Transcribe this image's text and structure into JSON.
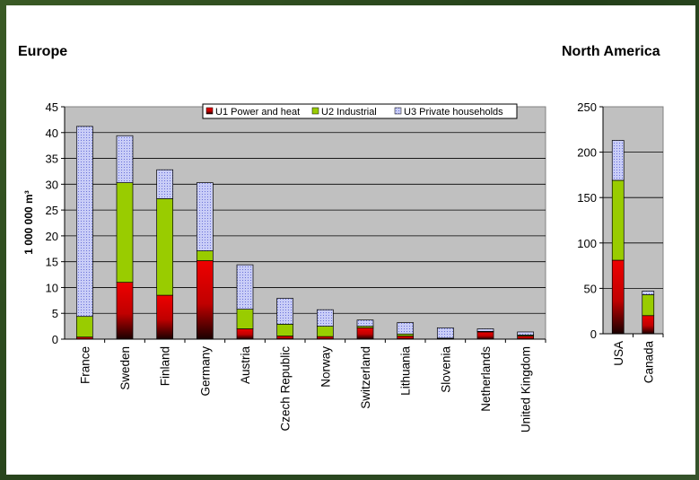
{
  "chart_data": [
    {
      "type": "bar",
      "stacked": true,
      "title": "Europe",
      "ylabel": "1 000 000 m³",
      "ylim": [
        0,
        45
      ],
      "yticks": [
        0,
        5,
        10,
        15,
        20,
        25,
        30,
        35,
        40,
        45
      ],
      "grid": true,
      "legend_position": "top-right",
      "categories": [
        "France",
        "Sweden",
        "Finland",
        "Germany",
        "Austria",
        "Czech Republic",
        "Norway",
        "Switzerland",
        "Lithuania",
        "Slovenia",
        "Netherlands",
        "United Kingdom"
      ],
      "series": [
        {
          "name": "U1 Power and heat",
          "color": "#e00000",
          "values": [
            0.4,
            11.0,
            8.5,
            15.2,
            2.0,
            0.6,
            0.5,
            2.2,
            0.6,
            0.1,
            1.4,
            0.6
          ]
        },
        {
          "name": "U2 Industrial",
          "color": "#99cc00",
          "values": [
            4.0,
            19.3,
            18.7,
            1.9,
            3.8,
            2.3,
            2.0,
            0.3,
            0.4,
            0.1,
            0.1,
            0.2
          ]
        },
        {
          "name": "U3 Private households",
          "color": "#c8ccf6",
          "values": [
            36.8,
            9.1,
            5.6,
            13.2,
            8.6,
            5.0,
            3.2,
            1.2,
            2.2,
            2.0,
            0.5,
            0.6
          ]
        }
      ]
    },
    {
      "type": "bar",
      "stacked": true,
      "title": "North America",
      "ylim": [
        0,
        250
      ],
      "yticks": [
        0,
        50,
        100,
        150,
        200,
        250
      ],
      "grid": true,
      "categories": [
        "USA",
        "Canada"
      ],
      "series": [
        {
          "name": "U1 Power and heat",
          "color": "#e00000",
          "values": [
            81,
            20
          ]
        },
        {
          "name": "U2 Industrial",
          "color": "#99cc00",
          "values": [
            88,
            23
          ]
        },
        {
          "name": "U3 Private households",
          "color": "#c8ccf6",
          "values": [
            44,
            4
          ]
        }
      ]
    }
  ]
}
